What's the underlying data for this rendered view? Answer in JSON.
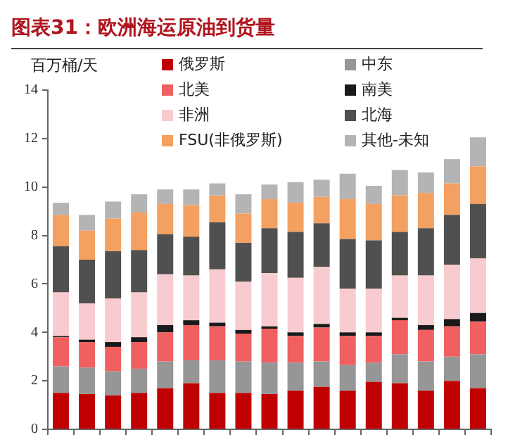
{
  "chart_data": {
    "type": "bar",
    "title": "图表31：欧洲海运原油到货量",
    "ylabel": "百万桶/天",
    "stacked": true,
    "legend": "top",
    "grid": false,
    "tick_labels": "y",
    "categories": [
      null,
      null,
      null,
      null,
      null,
      null,
      null,
      null,
      null,
      null,
      null,
      null,
      null,
      null,
      null,
      null,
      null
    ],
    "ylim": [
      0,
      14
    ],
    "yticks": [
      0,
      2,
      4,
      6,
      8,
      10,
      12,
      14
    ],
    "series": [
      {
        "name": "俄罗斯",
        "color": "#c00000",
        "values": [
          1.5,
          1.45,
          1.4,
          1.5,
          1.7,
          1.9,
          1.5,
          1.5,
          1.45,
          1.6,
          1.75,
          1.6,
          1.95,
          1.9,
          1.6,
          2.0,
          1.7
        ]
      },
      {
        "name": "中东",
        "color": "#969696",
        "values": [
          1.1,
          1.1,
          1.0,
          1.0,
          1.1,
          0.95,
          1.35,
          1.3,
          1.3,
          1.15,
          1.05,
          1.05,
          0.8,
          1.2,
          1.2,
          1.0,
          1.4
        ]
      },
      {
        "name": "北美",
        "color": "#f06060",
        "values": [
          1.2,
          1.05,
          1.0,
          1.1,
          1.2,
          1.45,
          1.4,
          1.15,
          1.4,
          1.1,
          1.4,
          1.2,
          1.1,
          1.4,
          1.3,
          1.25,
          1.35
        ]
      },
      {
        "name": "南美",
        "color": "#1a1a1a",
        "values": [
          0.05,
          0.1,
          0.2,
          0.2,
          0.3,
          0.2,
          0.15,
          0.15,
          0.1,
          0.15,
          0.15,
          0.15,
          0.15,
          0.1,
          0.2,
          0.3,
          0.35
        ]
      },
      {
        "name": "非洲",
        "color": "#f8cbd0",
        "values": [
          1.8,
          1.5,
          1.8,
          1.85,
          2.1,
          1.85,
          2.2,
          2.0,
          2.2,
          2.25,
          2.35,
          1.8,
          1.8,
          1.75,
          2.05,
          2.25,
          2.25
        ]
      },
      {
        "name": "北海",
        "color": "#505050",
        "values": [
          1.9,
          1.8,
          1.95,
          1.75,
          1.65,
          1.6,
          1.95,
          1.6,
          1.85,
          1.9,
          1.8,
          2.05,
          2.0,
          1.8,
          1.95,
          2.05,
          2.25
        ]
      },
      {
        "name": "FSU(非俄罗斯)",
        "color": "#f4a060",
        "values": [
          1.3,
          1.2,
          1.35,
          1.55,
          1.25,
          1.3,
          1.1,
          1.2,
          1.2,
          1.2,
          1.1,
          1.65,
          1.5,
          1.5,
          1.45,
          1.3,
          1.55
        ]
      },
      {
        "name": "其他-未知",
        "color": "#b4b4b4",
        "values": [
          0.5,
          0.65,
          0.7,
          0.75,
          0.6,
          0.65,
          0.5,
          0.8,
          0.6,
          0.85,
          0.7,
          1.05,
          0.75,
          1.05,
          0.85,
          1.0,
          1.2
        ]
      }
    ]
  }
}
